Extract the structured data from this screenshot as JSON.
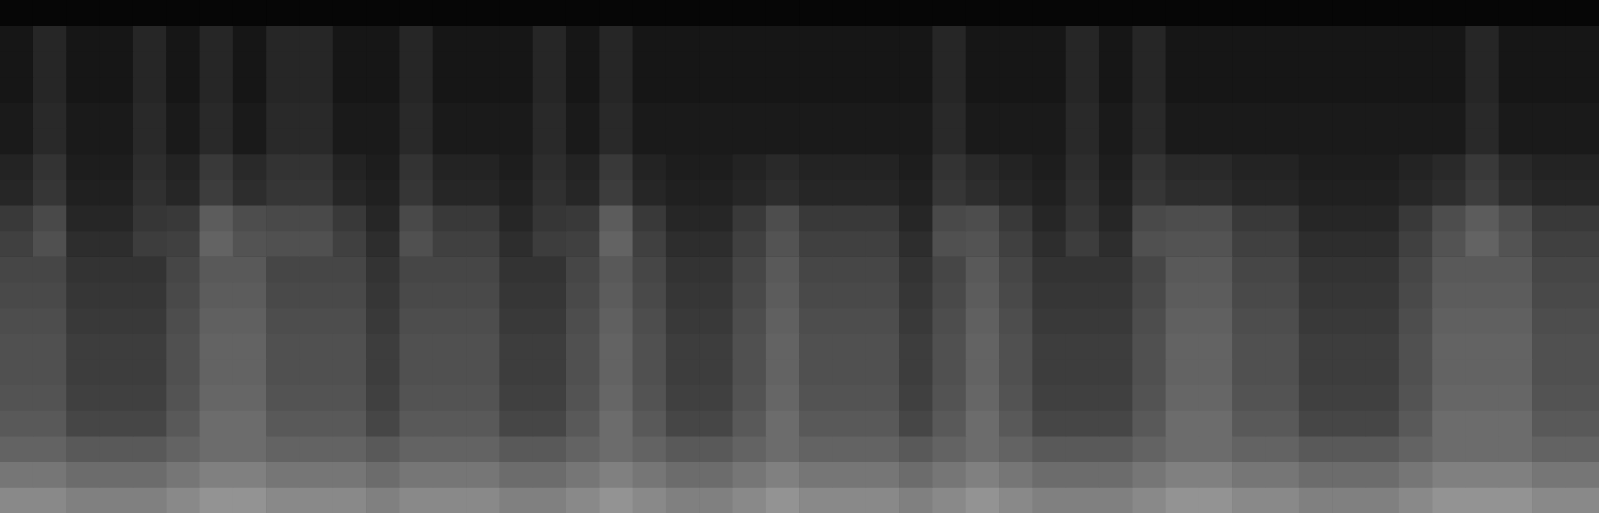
{
  "chart_data": {
    "type": "heatmap",
    "tick_labels": false,
    "grid": false,
    "zlim": [
      0,
      80
    ],
    "cells": [
      [
        2,
        2,
        2,
        2,
        2,
        2,
        2,
        2,
        2,
        2,
        2,
        2,
        2,
        2,
        2,
        2,
        2,
        2,
        2,
        2,
        2,
        2,
        2,
        2,
        2,
        2,
        2,
        2,
        2,
        2,
        2,
        2,
        2,
        2,
        2,
        2,
        2,
        2,
        2,
        2,
        2,
        2,
        2,
        2,
        2,
        2,
        2,
        2
      ],
      [
        7,
        12,
        7,
        7,
        12,
        7,
        12,
        7,
        12,
        12,
        7,
        7,
        12,
        7,
        7,
        7,
        12,
        7,
        12,
        7,
        7,
        7,
        7,
        7,
        7,
        7,
        7,
        7,
        12,
        7,
        7,
        7,
        12,
        7,
        12,
        7,
        7,
        7,
        7,
        7,
        7,
        7,
        7,
        7,
        12,
        7,
        7,
        7
      ],
      [
        7,
        12,
        7,
        7,
        12,
        7,
        12,
        7,
        12,
        12,
        7,
        7,
        12,
        7,
        7,
        7,
        12,
        7,
        12,
        7,
        7,
        7,
        7,
        7,
        7,
        7,
        7,
        7,
        12,
        7,
        7,
        7,
        12,
        7,
        12,
        7,
        7,
        7,
        7,
        7,
        7,
        7,
        7,
        7,
        12,
        7,
        7,
        7
      ],
      [
        7,
        12,
        7,
        7,
        12,
        7,
        12,
        7,
        12,
        12,
        7,
        7,
        12,
        7,
        7,
        7,
        12,
        7,
        12,
        7,
        7,
        7,
        7,
        7,
        7,
        7,
        7,
        7,
        12,
        7,
        7,
        7,
        12,
        7,
        12,
        7,
        7,
        7,
        7,
        7,
        7,
        7,
        7,
        7,
        12,
        7,
        7,
        7
      ],
      [
        8,
        13,
        8,
        8,
        13,
        8,
        13,
        8,
        13,
        13,
        8,
        8,
        13,
        8,
        8,
        8,
        13,
        8,
        13,
        8,
        8,
        8,
        8,
        8,
        8,
        8,
        8,
        8,
        13,
        8,
        8,
        8,
        13,
        8,
        13,
        8,
        8,
        8,
        8,
        8,
        8,
        8,
        8,
        8,
        13,
        8,
        8,
        8
      ],
      [
        8,
        13,
        8,
        8,
        13,
        8,
        13,
        8,
        13,
        13,
        8,
        8,
        13,
        8,
        8,
        8,
        13,
        8,
        13,
        8,
        8,
        8,
        8,
        8,
        8,
        8,
        8,
        8,
        13,
        8,
        8,
        8,
        13,
        8,
        13,
        8,
        8,
        8,
        8,
        8,
        8,
        8,
        8,
        8,
        13,
        8,
        8,
        8
      ],
      [
        11,
        16,
        9,
        9,
        14,
        11,
        18,
        13,
        16,
        16,
        11,
        9,
        16,
        11,
        11,
        9,
        14,
        11,
        18,
        11,
        9,
        9,
        11,
        13,
        11,
        11,
        11,
        9,
        16,
        13,
        11,
        9,
        14,
        9,
        16,
        13,
        13,
        11,
        11,
        9,
        9,
        9,
        11,
        13,
        18,
        13,
        11,
        11
      ],
      [
        12,
        17,
        10,
        10,
        15,
        12,
        19,
        14,
        17,
        17,
        12,
        10,
        17,
        12,
        12,
        10,
        15,
        12,
        19,
        12,
        10,
        10,
        12,
        14,
        12,
        12,
        12,
        10,
        17,
        14,
        12,
        10,
        15,
        10,
        17,
        14,
        14,
        12,
        12,
        10,
        10,
        10,
        12,
        14,
        19,
        14,
        12,
        12
      ],
      [
        18,
        23,
        12,
        12,
        17,
        18,
        29,
        24,
        23,
        23,
        18,
        12,
        23,
        18,
        18,
        12,
        17,
        18,
        29,
        18,
        12,
        12,
        18,
        24,
        18,
        18,
        18,
        12,
        23,
        24,
        18,
        12,
        17,
        12,
        23,
        24,
        24,
        18,
        18,
        12,
        12,
        12,
        18,
        24,
        29,
        24,
        18,
        18
      ],
      [
        20,
        25,
        14,
        14,
        19,
        20,
        31,
        26,
        25,
        25,
        20,
        14,
        25,
        20,
        20,
        14,
        19,
        20,
        31,
        20,
        14,
        14,
        20,
        26,
        20,
        20,
        20,
        14,
        25,
        26,
        20,
        14,
        19,
        14,
        25,
        26,
        26,
        20,
        20,
        14,
        14,
        14,
        20,
        26,
        31,
        26,
        20,
        20
      ],
      [
        22,
        22,
        16,
        16,
        16,
        22,
        28,
        28,
        22,
        22,
        22,
        16,
        22,
        22,
        22,
        16,
        16,
        22,
        28,
        22,
        16,
        16,
        22,
        28,
        22,
        22,
        22,
        16,
        22,
        28,
        22,
        16,
        16,
        16,
        22,
        28,
        28,
        22,
        22,
        16,
        16,
        16,
        22,
        28,
        28,
        28,
        22,
        22
      ],
      [
        23,
        23,
        17,
        17,
        17,
        23,
        29,
        29,
        23,
        23,
        23,
        17,
        23,
        23,
        23,
        17,
        17,
        23,
        29,
        23,
        17,
        17,
        23,
        29,
        23,
        23,
        23,
        17,
        23,
        29,
        23,
        17,
        17,
        17,
        23,
        29,
        29,
        23,
        23,
        17,
        17,
        17,
        23,
        29,
        29,
        29,
        23,
        23
      ],
      [
        24,
        24,
        18,
        18,
        18,
        24,
        30,
        30,
        24,
        24,
        24,
        18,
        24,
        24,
        24,
        18,
        18,
        24,
        30,
        24,
        18,
        18,
        24,
        30,
        24,
        24,
        24,
        18,
        24,
        30,
        24,
        18,
        18,
        18,
        24,
        30,
        30,
        24,
        24,
        18,
        18,
        18,
        24,
        30,
        30,
        30,
        24,
        24
      ],
      [
        25,
        25,
        19,
        19,
        19,
        25,
        31,
        31,
        25,
        25,
        25,
        19,
        25,
        25,
        25,
        19,
        19,
        25,
        31,
        25,
        19,
        19,
        25,
        31,
        25,
        25,
        25,
        19,
        25,
        31,
        25,
        19,
        19,
        19,
        25,
        31,
        31,
        25,
        25,
        19,
        19,
        19,
        25,
        31,
        31,
        31,
        25,
        25
      ],
      [
        25,
        25,
        19,
        19,
        19,
        25,
        31,
        31,
        25,
        25,
        25,
        19,
        25,
        25,
        25,
        19,
        19,
        25,
        31,
        25,
        19,
        19,
        25,
        31,
        25,
        25,
        25,
        19,
        25,
        31,
        25,
        19,
        19,
        19,
        25,
        31,
        31,
        25,
        25,
        19,
        19,
        19,
        25,
        31,
        31,
        31,
        25,
        25
      ],
      [
        26,
        26,
        20,
        20,
        20,
        26,
        32,
        32,
        26,
        26,
        26,
        20,
        26,
        26,
        26,
        20,
        20,
        26,
        32,
        26,
        20,
        20,
        26,
        32,
        26,
        26,
        26,
        20,
        26,
        32,
        26,
        20,
        20,
        20,
        26,
        32,
        32,
        26,
        26,
        20,
        20,
        20,
        26,
        32,
        32,
        32,
        26,
        26
      ],
      [
        28,
        28,
        22,
        22,
        22,
        28,
        34,
        34,
        28,
        28,
        28,
        22,
        28,
        28,
        28,
        22,
        22,
        28,
        34,
        28,
        22,
        22,
        28,
        34,
        28,
        28,
        28,
        22,
        28,
        34,
        28,
        22,
        22,
        22,
        28,
        34,
        34,
        28,
        28,
        22,
        22,
        22,
        28,
        34,
        34,
        34,
        28,
        28
      ],
      [
        31,
        31,
        28,
        28,
        28,
        31,
        34,
        34,
        31,
        31,
        31,
        28,
        31,
        31,
        31,
        28,
        28,
        31,
        34,
        31,
        28,
        28,
        31,
        34,
        31,
        31,
        31,
        28,
        31,
        34,
        31,
        28,
        28,
        28,
        31,
        34,
        34,
        31,
        31,
        28,
        28,
        28,
        31,
        34,
        34,
        34,
        31,
        31
      ],
      [
        37,
        37,
        34,
        34,
        34,
        37,
        40,
        40,
        37,
        37,
        37,
        34,
        37,
        37,
        37,
        34,
        34,
        37,
        40,
        37,
        34,
        34,
        37,
        40,
        37,
        37,
        37,
        34,
        37,
        40,
        37,
        34,
        34,
        34,
        37,
        40,
        40,
        37,
        37,
        34,
        34,
        34,
        37,
        40,
        40,
        40,
        37,
        37
      ],
      [
        43,
        43,
        40,
        40,
        40,
        43,
        46,
        46,
        43,
        43,
        43,
        40,
        43,
        43,
        43,
        40,
        40,
        43,
        46,
        43,
        40,
        40,
        43,
        46,
        43,
        43,
        43,
        40,
        43,
        46,
        43,
        40,
        40,
        40,
        43,
        46,
        46,
        43,
        43,
        40,
        40,
        40,
        43,
        46,
        46,
        46,
        43,
        43
      ]
    ]
  }
}
